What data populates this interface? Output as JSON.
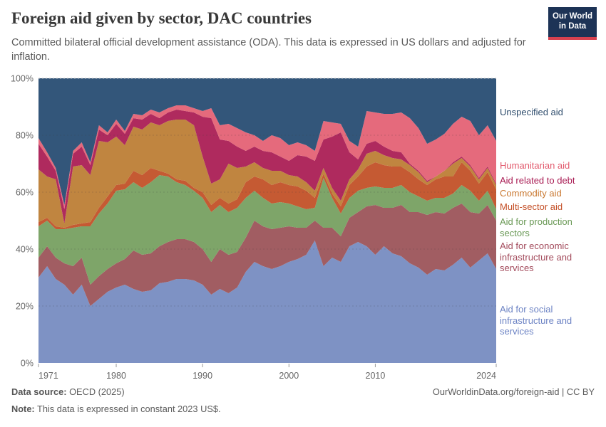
{
  "header": {
    "title": "Foreign aid given by sector, DAC countries",
    "subtitle": "Committed bilateral official development assistance (ODA). This data is expressed in US dollars and adjusted for inflation.",
    "logo": {
      "line1": "Our World",
      "line2": "in Data"
    }
  },
  "footer": {
    "source_label": "Data source:",
    "source_value": " OECD (2025)",
    "note_label": "Note:",
    "note_value": " This data is expressed in constant 2023 US$.",
    "link": "OurWorldinData.org/foreign-aid | CC BY"
  },
  "chart_data": {
    "type": "area",
    "stacked": true,
    "normalized": true,
    "title": "Foreign aid given by sector, DAC countries",
    "xlabel": "",
    "ylabel": "",
    "ylim": [
      0,
      100
    ],
    "grid": "dashed-horizontal",
    "legend_position": "right",
    "x": [
      1971,
      1972,
      1973,
      1974,
      1975,
      1976,
      1977,
      1978,
      1979,
      1980,
      1981,
      1982,
      1983,
      1984,
      1985,
      1986,
      1987,
      1988,
      1989,
      1990,
      1991,
      1992,
      1993,
      1994,
      1995,
      1996,
      1997,
      1998,
      1999,
      2000,
      2001,
      2002,
      2003,
      2004,
      2005,
      2006,
      2007,
      2008,
      2009,
      2010,
      2011,
      2012,
      2013,
      2014,
      2015,
      2016,
      2017,
      2018,
      2019,
      2020,
      2021,
      2022,
      2023,
      2024
    ],
    "x_tick_labels": [
      "1971",
      "1980",
      "1990",
      "2000",
      "2010",
      "2024"
    ],
    "x_tick_years": [
      1971,
      1980,
      1990,
      2000,
      2010,
      2024
    ],
    "y_tick_labels": [
      "0%",
      "20%",
      "40%",
      "60%",
      "80%",
      "100%"
    ],
    "y_tick_values": [
      0,
      20,
      40,
      60,
      80,
      100
    ],
    "series": [
      {
        "id": "social",
        "label": "Aid for social infrastructure and services",
        "color": "#7e92c4",
        "label_color": "#6c83c4",
        "values": [
          30,
          34,
          29.5,
          27.5,
          24,
          27.5,
          20,
          22.5,
          25,
          26.5,
          27.5,
          26,
          25,
          25.5,
          28,
          28.5,
          29.5,
          29.5,
          29,
          27.5,
          24,
          26,
          24.5,
          26.5,
          32,
          35.5,
          34,
          33,
          34,
          35.5,
          36.5,
          38,
          43,
          34,
          37,
          35.5,
          41,
          42.5,
          41,
          38,
          41,
          38.5,
          37.5,
          35,
          33.5,
          31,
          33,
          32.5,
          34.5,
          37,
          33.5,
          36,
          38.5,
          33
        ]
      },
      {
        "id": "economic",
        "label": "Aid for economic infrastructure and services",
        "color": "#a15d62",
        "label_color": "#a34b5c",
        "values": [
          7,
          7,
          7.5,
          7.5,
          10,
          9.5,
          7.5,
          8,
          8,
          8.5,
          9,
          13.5,
          13,
          13,
          13,
          14,
          14,
          14,
          13.5,
          12.5,
          11.5,
          14,
          13.5,
          12.5,
          12,
          14.5,
          14,
          14,
          13.5,
          12.5,
          11,
          9.5,
          7,
          13.5,
          10.5,
          9,
          10,
          10.5,
          14,
          17.5,
          13.5,
          16,
          18,
          18,
          19.5,
          21,
          20,
          20,
          20,
          19,
          19.5,
          16.5,
          17,
          17
        ]
      },
      {
        "id": "production",
        "label": "Aid for production sectors",
        "color": "#7ea569",
        "label_color": "#6a9956",
        "values": [
          11,
          9,
          10,
          12,
          13.5,
          11,
          20.5,
          22,
          23,
          25.5,
          24.5,
          24,
          23.5,
          25,
          25,
          23,
          20,
          19,
          18,
          18,
          17.5,
          15.5,
          15,
          15.5,
          14,
          10.5,
          10,
          9,
          9,
          8,
          7.5,
          6.5,
          4.5,
          17.5,
          10.5,
          8,
          7,
          7.5,
          6.5,
          6.5,
          7,
          7,
          7,
          7,
          5.5,
          5,
          5,
          5.5,
          5,
          6.5,
          7.5,
          4.5,
          5,
          4
        ]
      },
      {
        "id": "multisector",
        "label": "Multi-sector aid",
        "color": "#c55a33",
        "label_color": "#c44f26",
        "values": [
          1.5,
          1,
          1,
          0.5,
          1,
          1,
          1.5,
          2,
          2.5,
          2,
          2,
          4,
          4.5,
          5,
          1.5,
          1,
          1,
          1.5,
          1,
          2,
          2.5,
          2.5,
          3,
          3,
          5.5,
          5,
          6.5,
          6.5,
          7,
          6.5,
          7,
          6.5,
          3.5,
          1.5,
          1.5,
          2.5,
          4.5,
          5,
          7.5,
          8.5,
          8,
          7.5,
          6.5,
          7,
          6,
          5.5,
          6.5,
          7.5,
          6,
          8,
          7,
          6,
          6.5,
          7
        ]
      },
      {
        "id": "commodity",
        "label": "Commodity aid",
        "color": "#c08540",
        "label_color": "#ca7a33",
        "values": [
          18.5,
          14.5,
          16.5,
          1.5,
          20.5,
          20.5,
          16.5,
          23.5,
          19,
          17,
          13.5,
          15.5,
          16,
          16,
          16,
          18.5,
          21,
          21.5,
          22,
          12.5,
          7.5,
          6.5,
          14,
          11,
          5.5,
          5,
          4,
          5,
          4,
          3.5,
          3.5,
          3,
          2.5,
          2,
          2,
          2,
          2,
          2.5,
          4.5,
          4,
          3.5,
          3,
          2.5,
          2.5,
          2.5,
          1,
          1,
          2,
          4.5,
          1.5,
          1.5,
          1.5,
          1.5,
          1.5
        ]
      },
      {
        "id": "debt",
        "label": "Aid related to debt",
        "color": "#af2a5e",
        "label_color": "#a81a52",
        "values": [
          9,
          7,
          3,
          5,
          4.5,
          6.5,
          3.5,
          4,
          2.5,
          4.5,
          4,
          3,
          3.5,
          3,
          2.5,
          3,
          3.5,
          3,
          4.5,
          14,
          23,
          14,
          8,
          7.5,
          5.5,
          5.5,
          6,
          6.5,
          5,
          5,
          7.5,
          9,
          10.5,
          10,
          18,
          24,
          9.5,
          3.5,
          3.5,
          3.5,
          3,
          2.5,
          2.5,
          0.5,
          0.5,
          0.5,
          0,
          0,
          0.5,
          0.5,
          0.5,
          0.5,
          0.5,
          0.5
        ]
      },
      {
        "id": "humanitarian",
        "label": "Humanitarian aid",
        "color": "#e56a7c",
        "label_color": "#e25a6d",
        "values": [
          2,
          1.5,
          1,
          1.5,
          1,
          1.5,
          1,
          1.5,
          1,
          1.5,
          1,
          1.5,
          1.5,
          1.5,
          2,
          1.5,
          1.5,
          2,
          1.5,
          2,
          3.5,
          5,
          6,
          6.5,
          6.5,
          4,
          3.5,
          6,
          6.5,
          5.5,
          4.5,
          4,
          3.5,
          6.5,
          5,
          3,
          4,
          4.5,
          11.5,
          10,
          11.5,
          13,
          14,
          16,
          15,
          13,
          13,
          13,
          13.5,
          14,
          15.5,
          15,
          14.5,
          15
        ]
      },
      {
        "id": "unspecified",
        "label": "Unspecified aid",
        "color": "#33567a",
        "label_color": "#2f4d6d",
        "values": [
          21,
          26,
          31.5,
          44.5,
          25.5,
          22.5,
          29.5,
          16.5,
          19,
          14.5,
          18.5,
          12.5,
          13,
          11,
          12,
          10.5,
          9.5,
          9.5,
          10.5,
          11.5,
          10.5,
          16.5,
          16,
          17.5,
          19,
          20,
          22,
          20,
          21,
          23.5,
          22.5,
          23.5,
          25.5,
          15,
          15.5,
          16,
          22,
          24,
          11.5,
          12,
          12.5,
          12.5,
          12,
          14,
          17.5,
          23,
          21.5,
          19.5,
          16,
          13.5,
          15,
          20,
          16.5,
          22
        ]
      }
    ]
  },
  "legend_order_top_to_bottom": [
    "unspecified",
    "humanitarian",
    "debt",
    "commodity",
    "multisector",
    "production",
    "economic",
    "social"
  ]
}
